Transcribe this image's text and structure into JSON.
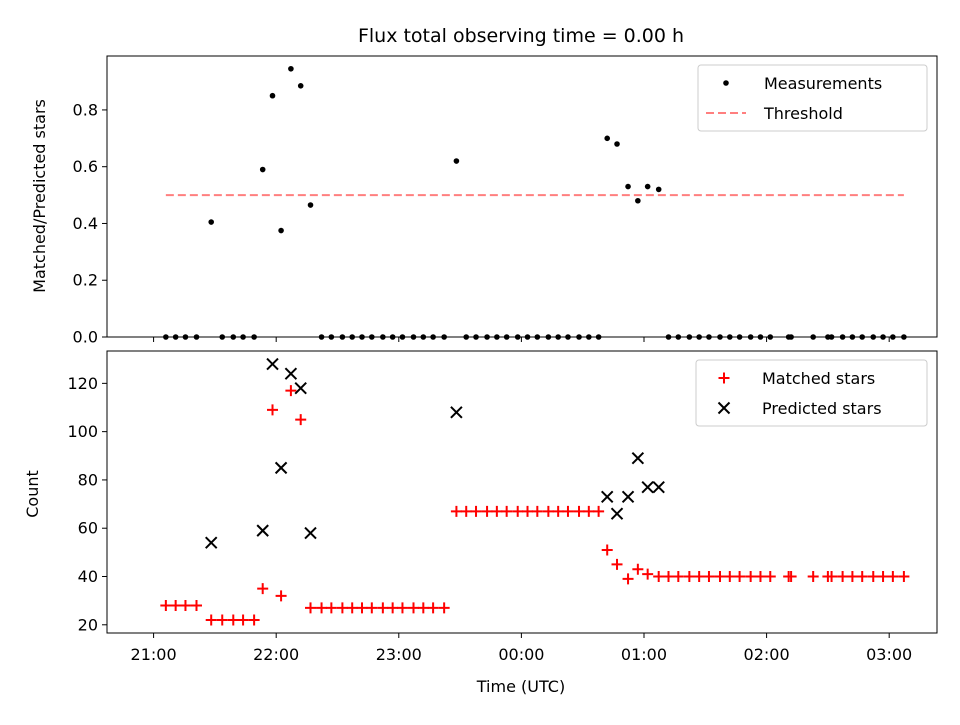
{
  "chart_data": {
    "title": "Flux total observing time = 0.00 h",
    "xlabel": "Time (UTC)",
    "x_tick_labels": [
      "21:00",
      "22:00",
      "23:00",
      "00:00",
      "01:00",
      "02:00",
      "03:00"
    ],
    "x_tick_hours": [
      21,
      22,
      23,
      24,
      25,
      26,
      27
    ],
    "xlim_hours": [
      20.62,
      27.39
    ],
    "panels": [
      {
        "type": "scatter",
        "ylabel": "Matched/Predicted stars",
        "ylim": [
          0,
          0.99
        ],
        "y_ticks": [
          0,
          0.2,
          0.4,
          0.6,
          0.8
        ],
        "y_tick_labels": [
          "0.0",
          "0.2",
          "0.4",
          "0.6",
          "0.8"
        ],
        "legend_position": "top-right",
        "series": [
          {
            "name": "Measurements",
            "kind": "dot",
            "color": "#000000",
            "points": [
              [
                21.1,
                0
              ],
              [
                21.18,
                0
              ],
              [
                21.26,
                0
              ],
              [
                21.35,
                0
              ],
              [
                21.47,
                0.405
              ],
              [
                21.56,
                0
              ],
              [
                21.65,
                0
              ],
              [
                21.73,
                0
              ],
              [
                21.82,
                0
              ],
              [
                21.89,
                0.59
              ],
              [
                21.97,
                0.85
              ],
              [
                22.04,
                0.375
              ],
              [
                22.12,
                0.945
              ],
              [
                22.2,
                0.885
              ],
              [
                22.28,
                0.465
              ],
              [
                22.37,
                0
              ],
              [
                22.45,
                0
              ],
              [
                22.54,
                0
              ],
              [
                22.62,
                0
              ],
              [
                22.7,
                0
              ],
              [
                22.78,
                0
              ],
              [
                22.87,
                0
              ],
              [
                22.95,
                0
              ],
              [
                23.03,
                0
              ],
              [
                23.12,
                0
              ],
              [
                23.2,
                0
              ],
              [
                23.28,
                0
              ],
              [
                23.37,
                0
              ],
              [
                23.47,
                0.62
              ],
              [
                23.55,
                0
              ],
              [
                23.63,
                0
              ],
              [
                23.72,
                0
              ],
              [
                23.8,
                0
              ],
              [
                23.88,
                0
              ],
              [
                23.97,
                0
              ],
              [
                24.05,
                0
              ],
              [
                24.13,
                0
              ],
              [
                24.22,
                0
              ],
              [
                24.3,
                0
              ],
              [
                24.38,
                0
              ],
              [
                24.47,
                0
              ],
              [
                24.55,
                0
              ],
              [
                24.63,
                0
              ],
              [
                24.7,
                0.7
              ],
              [
                24.78,
                0.68
              ],
              [
                24.87,
                0.53
              ],
              [
                24.95,
                0.48
              ],
              [
                25.03,
                0.53
              ],
              [
                25.12,
                0.52
              ],
              [
                25.2,
                0
              ],
              [
                25.28,
                0
              ],
              [
                25.37,
                0
              ],
              [
                25.45,
                0
              ],
              [
                25.53,
                0
              ],
              [
                25.62,
                0
              ],
              [
                25.7,
                0
              ],
              [
                25.78,
                0
              ],
              [
                25.87,
                0
              ],
              [
                25.95,
                0
              ],
              [
                26.03,
                0
              ],
              [
                26.18,
                0
              ],
              [
                26.2,
                0
              ],
              [
                26.38,
                0
              ],
              [
                26.5,
                0
              ],
              [
                26.53,
                0
              ],
              [
                26.62,
                0
              ],
              [
                26.7,
                0
              ],
              [
                26.78,
                0
              ],
              [
                26.87,
                0
              ],
              [
                26.95,
                0
              ],
              [
                27.03,
                0
              ],
              [
                27.12,
                0
              ]
            ]
          },
          {
            "name": "Threshold",
            "kind": "dashed-line",
            "color": "#ff7f7f",
            "points": [
              [
                21.1,
                0.5
              ],
              [
                27.12,
                0.5
              ]
            ]
          }
        ]
      },
      {
        "type": "scatter",
        "ylabel": "Count",
        "ylim": [
          16.6,
          133.4
        ],
        "y_ticks": [
          20,
          40,
          60,
          80,
          100,
          120
        ],
        "y_tick_labels": [
          "20",
          "40",
          "60",
          "80",
          "100",
          "120"
        ],
        "legend_position": "top-right",
        "series": [
          {
            "name": "Matched stars",
            "kind": "plus",
            "color": "#ff0000",
            "points": [
              [
                21.1,
                28
              ],
              [
                21.18,
                28
              ],
              [
                21.26,
                28
              ],
              [
                21.35,
                28
              ],
              [
                21.47,
                22
              ],
              [
                21.56,
                22
              ],
              [
                21.65,
                22
              ],
              [
                21.73,
                22
              ],
              [
                21.82,
                22
              ],
              [
                21.89,
                35
              ],
              [
                21.97,
                109
              ],
              [
                22.04,
                32
              ],
              [
                22.12,
                117
              ],
              [
                22.2,
                105
              ],
              [
                22.28,
                27
              ],
              [
                22.37,
                27
              ],
              [
                22.45,
                27
              ],
              [
                22.54,
                27
              ],
              [
                22.62,
                27
              ],
              [
                22.7,
                27
              ],
              [
                22.78,
                27
              ],
              [
                22.87,
                27
              ],
              [
                22.95,
                27
              ],
              [
                23.03,
                27
              ],
              [
                23.12,
                27
              ],
              [
                23.2,
                27
              ],
              [
                23.28,
                27
              ],
              [
                23.37,
                27
              ],
              [
                23.47,
                67
              ],
              [
                23.55,
                67
              ],
              [
                23.63,
                67
              ],
              [
                23.72,
                67
              ],
              [
                23.8,
                67
              ],
              [
                23.88,
                67
              ],
              [
                23.97,
                67
              ],
              [
                24.05,
                67
              ],
              [
                24.13,
                67
              ],
              [
                24.22,
                67
              ],
              [
                24.3,
                67
              ],
              [
                24.38,
                67
              ],
              [
                24.47,
                67
              ],
              [
                24.55,
                67
              ],
              [
                24.63,
                67
              ],
              [
                24.7,
                51
              ],
              [
                24.78,
                45
              ],
              [
                24.87,
                39
              ],
              [
                24.95,
                43
              ],
              [
                25.03,
                41
              ],
              [
                25.12,
                40
              ],
              [
                25.2,
                40
              ],
              [
                25.28,
                40
              ],
              [
                25.37,
                40
              ],
              [
                25.45,
                40
              ],
              [
                25.53,
                40
              ],
              [
                25.62,
                40
              ],
              [
                25.7,
                40
              ],
              [
                25.78,
                40
              ],
              [
                25.87,
                40
              ],
              [
                25.95,
                40
              ],
              [
                26.03,
                40
              ],
              [
                26.18,
                40
              ],
              [
                26.2,
                40
              ],
              [
                26.38,
                40
              ],
              [
                26.5,
                40
              ],
              [
                26.53,
                40
              ],
              [
                26.62,
                40
              ],
              [
                26.7,
                40
              ],
              [
                26.78,
                40
              ],
              [
                26.87,
                40
              ],
              [
                26.95,
                40
              ],
              [
                27.03,
                40
              ],
              [
                27.12,
                40
              ]
            ]
          },
          {
            "name": "Predicted stars",
            "kind": "cross",
            "color": "#000000",
            "points": [
              [
                21.47,
                54
              ],
              [
                21.89,
                59
              ],
              [
                21.97,
                128
              ],
              [
                22.04,
                85
              ],
              [
                22.12,
                124
              ],
              [
                22.2,
                118
              ],
              [
                22.28,
                58
              ],
              [
                23.47,
                108
              ],
              [
                24.7,
                73
              ],
              [
                24.78,
                66
              ],
              [
                24.87,
                73
              ],
              [
                24.95,
                89
              ],
              [
                25.03,
                77
              ],
              [
                25.12,
                77
              ]
            ]
          }
        ]
      }
    ]
  }
}
